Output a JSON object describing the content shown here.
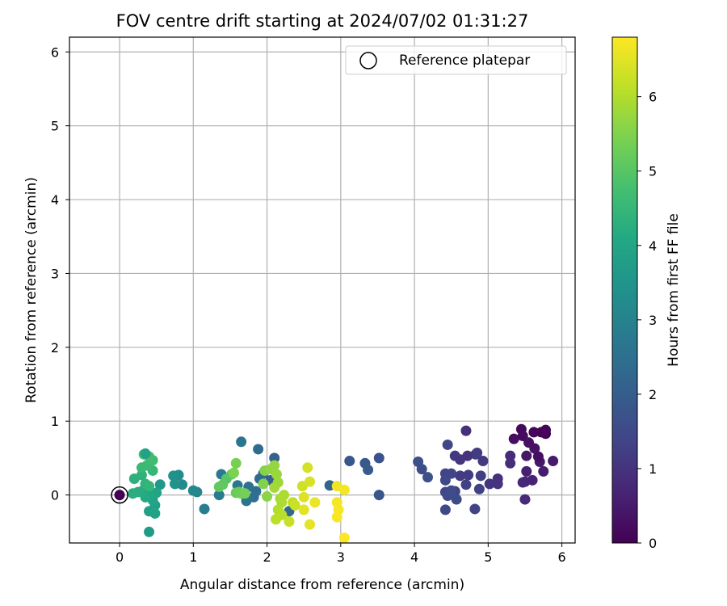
{
  "chart_data": {
    "type": "scatter",
    "title": "FOV centre drift starting at 2024/07/02 01:31:27",
    "xlabel": "Angular distance from reference (arcmin)",
    "ylabel": "Rotation from reference (arcmin)",
    "xlim": [
      -0.68,
      6.18
    ],
    "ylim": [
      -0.65,
      6.2
    ],
    "xticks": [
      0,
      1,
      2,
      3,
      4,
      5,
      6
    ],
    "yticks": [
      0,
      1,
      2,
      3,
      4,
      5,
      6
    ],
    "grid": true,
    "legend": {
      "position": "top-right",
      "entries": [
        "Reference platepar"
      ]
    },
    "reference_point": {
      "x": 0,
      "y": 0
    },
    "colorbar": {
      "label": "Hours from first FF file",
      "range": [
        0,
        6.8
      ],
      "ticks": [
        0,
        1,
        2,
        3,
        4,
        5,
        6
      ],
      "colormap": "viridis"
    },
    "points": [
      {
        "x": 5.72,
        "y": 0.85,
        "h": 0.05
      },
      {
        "x": 5.78,
        "y": 0.83,
        "h": 0.08
      },
      {
        "x": 5.62,
        "y": 0.85,
        "h": 0.12
      },
      {
        "x": 5.45,
        "y": 0.89,
        "h": 0.15
      },
      {
        "x": 5.47,
        "y": 0.8,
        "h": 0.2
      },
      {
        "x": 5.35,
        "y": 0.76,
        "h": 0.25
      },
      {
        "x": 5.55,
        "y": 0.71,
        "h": 0.3
      },
      {
        "x": 5.63,
        "y": 0.63,
        "h": 0.35
      },
      {
        "x": 5.52,
        "y": 0.53,
        "h": 0.4
      },
      {
        "x": 5.7,
        "y": 0.45,
        "h": 0.45
      },
      {
        "x": 5.88,
        "y": 0.46,
        "h": 0.5
      },
      {
        "x": 5.75,
        "y": 0.32,
        "h": 0.55
      },
      {
        "x": 5.52,
        "y": 0.32,
        "h": 0.6
      },
      {
        "x": 5.6,
        "y": 0.2,
        "h": 0.65
      },
      {
        "x": 5.5,
        "y": 0.18,
        "h": 0.7
      },
      {
        "x": 5.47,
        "y": 0.17,
        "h": 0.75
      },
      {
        "x": 5.5,
        "y": -0.06,
        "h": 0.8
      },
      {
        "x": 5.78,
        "y": 0.88,
        "h": 0.1
      },
      {
        "x": 5.68,
        "y": 0.52,
        "h": 0.28
      },
      {
        "x": 5.3,
        "y": 0.53,
        "h": 0.85
      },
      {
        "x": 5.3,
        "y": 0.43,
        "h": 0.9
      },
      {
        "x": 5.13,
        "y": 0.22,
        "h": 0.95
      },
      {
        "x": 5.13,
        "y": 0.15,
        "h": 1.0
      },
      {
        "x": 5.02,
        "y": 0.15,
        "h": 1.05
      },
      {
        "x": 4.93,
        "y": 0.46,
        "h": 1.1
      },
      {
        "x": 4.85,
        "y": 0.57,
        "h": 1.15
      },
      {
        "x": 4.83,
        "y": 0.55,
        "h": 1.2
      },
      {
        "x": 4.9,
        "y": 0.26,
        "h": 1.25
      },
      {
        "x": 4.88,
        "y": 0.08,
        "h": 1.3
      },
      {
        "x": 4.82,
        "y": -0.19,
        "h": 1.35
      },
      {
        "x": 4.7,
        "y": 0.87,
        "h": 0.92
      },
      {
        "x": 4.72,
        "y": 0.53,
        "h": 1.0
      },
      {
        "x": 4.62,
        "y": 0.48,
        "h": 1.05
      },
      {
        "x": 4.55,
        "y": 0.53,
        "h": 1.12
      },
      {
        "x": 4.62,
        "y": 0.26,
        "h": 1.18
      },
      {
        "x": 4.73,
        "y": 0.27,
        "h": 1.22
      },
      {
        "x": 4.7,
        "y": 0.14,
        "h": 1.28
      },
      {
        "x": 4.55,
        "y": 0.05,
        "h": 1.33
      },
      {
        "x": 4.5,
        "y": 0.29,
        "h": 1.38
      },
      {
        "x": 4.45,
        "y": 0.68,
        "h": 1.4
      },
      {
        "x": 4.42,
        "y": 0.29,
        "h": 1.42
      },
      {
        "x": 4.42,
        "y": 0.2,
        "h": 1.45
      },
      {
        "x": 4.42,
        "y": 0.04,
        "h": 1.47
      },
      {
        "x": 4.45,
        "y": -0.01,
        "h": 1.5
      },
      {
        "x": 4.42,
        "y": -0.2,
        "h": 1.52
      },
      {
        "x": 4.5,
        "y": 0.06,
        "h": 1.55
      },
      {
        "x": 4.57,
        "y": -0.06,
        "h": 1.57
      },
      {
        "x": 4.05,
        "y": 0.45,
        "h": 1.6
      },
      {
        "x": 4.1,
        "y": 0.35,
        "h": 1.62
      },
      {
        "x": 4.18,
        "y": 0.24,
        "h": 1.65
      },
      {
        "x": 3.52,
        "y": 0.5,
        "h": 1.75
      },
      {
        "x": 3.52,
        "y": 0.0,
        "h": 1.8
      },
      {
        "x": 3.12,
        "y": 0.46,
        "h": 1.85
      },
      {
        "x": 3.33,
        "y": 0.43,
        "h": 1.9
      },
      {
        "x": 3.37,
        "y": 0.34,
        "h": 1.95
      },
      {
        "x": 2.85,
        "y": 0.13,
        "h": 2.2
      },
      {
        "x": 2.3,
        "y": -0.22,
        "h": 2.3
      },
      {
        "x": 2.1,
        "y": 0.5,
        "h": 2.1
      },
      {
        "x": 2.05,
        "y": 0.2,
        "h": 2.15
      },
      {
        "x": 1.95,
        "y": 0.29,
        "h": 2.25
      },
      {
        "x": 1.9,
        "y": 0.22,
        "h": 2.35
      },
      {
        "x": 1.88,
        "y": 0.62,
        "h": 2.4
      },
      {
        "x": 1.85,
        "y": 0.05,
        "h": 2.45
      },
      {
        "x": 1.82,
        "y": -0.03,
        "h": 2.5
      },
      {
        "x": 1.75,
        "y": 0.11,
        "h": 2.55
      },
      {
        "x": 1.72,
        "y": -0.08,
        "h": 2.6
      },
      {
        "x": 1.65,
        "y": 0.72,
        "h": 2.65
      },
      {
        "x": 1.6,
        "y": 0.13,
        "h": 2.7
      },
      {
        "x": 1.38,
        "y": 0.28,
        "h": 2.75
      },
      {
        "x": 1.35,
        "y": 0.0,
        "h": 2.8
      },
      {
        "x": 1.15,
        "y": -0.19,
        "h": 2.85
      },
      {
        "x": 1.05,
        "y": 0.04,
        "h": 3.1
      },
      {
        "x": 1.0,
        "y": 0.06,
        "h": 3.15
      },
      {
        "x": 0.85,
        "y": 0.14,
        "h": 3.2
      },
      {
        "x": 0.8,
        "y": 0.27,
        "h": 3.3
      },
      {
        "x": 0.73,
        "y": 0.26,
        "h": 3.4
      },
      {
        "x": 0.75,
        "y": 0.15,
        "h": 3.45
      },
      {
        "x": 0.55,
        "y": 0.14,
        "h": 3.6
      },
      {
        "x": 0.4,
        "y": -0.5,
        "h": 3.7
      },
      {
        "x": 0.4,
        "y": -0.22,
        "h": 3.8
      },
      {
        "x": 0.48,
        "y": -0.14,
        "h": 3.85
      },
      {
        "x": 0.48,
        "y": -0.25,
        "h": 3.9
      },
      {
        "x": 0.45,
        "y": -0.07,
        "h": 3.95
      },
      {
        "x": 0.5,
        "y": 0.03,
        "h": 4.0
      },
      {
        "x": 0.4,
        "y": 0.03,
        "h": 4.05
      },
      {
        "x": 0.35,
        "y": -0.03,
        "h": 4.1
      },
      {
        "x": 0.3,
        "y": 0.05,
        "h": 4.15
      },
      {
        "x": 0.25,
        "y": 0.04,
        "h": 4.2
      },
      {
        "x": 0.18,
        "y": 0.02,
        "h": 4.25
      },
      {
        "x": 0.2,
        "y": 0.22,
        "h": 4.3
      },
      {
        "x": 0.3,
        "y": 0.27,
        "h": 4.35
      },
      {
        "x": 0.35,
        "y": 0.15,
        "h": 4.4
      },
      {
        "x": 0.4,
        "y": 0.12,
        "h": 4.45
      },
      {
        "x": 0.45,
        "y": 0.33,
        "h": 4.5
      },
      {
        "x": 0.3,
        "y": 0.37,
        "h": 4.55
      },
      {
        "x": 0.37,
        "y": 0.4,
        "h": 4.6
      },
      {
        "x": 0.45,
        "y": 0.47,
        "h": 4.65
      },
      {
        "x": 0.4,
        "y": 0.52,
        "h": 4.7
      },
      {
        "x": 0.33,
        "y": 0.55,
        "h": 4.75
      },
      {
        "x": 0.35,
        "y": 0.56,
        "h": 3.9
      },
      {
        "x": 1.45,
        "y": 0.22,
        "h": 5.0
      },
      {
        "x": 1.52,
        "y": 0.28,
        "h": 5.05
      },
      {
        "x": 1.4,
        "y": 0.14,
        "h": 5.1
      },
      {
        "x": 1.35,
        "y": 0.11,
        "h": 5.15
      },
      {
        "x": 1.58,
        "y": 0.03,
        "h": 5.2
      },
      {
        "x": 1.62,
        "y": 0.04,
        "h": 5.25
      },
      {
        "x": 1.65,
        "y": 0.02,
        "h": 5.3
      },
      {
        "x": 1.7,
        "y": 0.02,
        "h": 5.35
      },
      {
        "x": 1.58,
        "y": 0.43,
        "h": 5.4
      },
      {
        "x": 1.55,
        "y": 0.3,
        "h": 5.45
      },
      {
        "x": 1.95,
        "y": 0.15,
        "h": 5.5
      },
      {
        "x": 1.97,
        "y": 0.33,
        "h": 5.55
      },
      {
        "x": 2.0,
        "y": -0.02,
        "h": 5.6
      },
      {
        "x": 2.05,
        "y": 0.35,
        "h": 5.65
      },
      {
        "x": 2.1,
        "y": 0.4,
        "h": 5.7
      },
      {
        "x": 2.13,
        "y": 0.28,
        "h": 5.75
      },
      {
        "x": 2.15,
        "y": 0.17,
        "h": 5.8
      },
      {
        "x": 2.1,
        "y": 0.1,
        "h": 5.85
      },
      {
        "x": 2.18,
        "y": -0.05,
        "h": 5.9
      },
      {
        "x": 2.2,
        "y": -0.1,
        "h": 5.95
      },
      {
        "x": 2.15,
        "y": -0.2,
        "h": 6.0
      },
      {
        "x": 2.2,
        "y": -0.27,
        "h": 6.05
      },
      {
        "x": 2.12,
        "y": -0.33,
        "h": 6.1
      },
      {
        "x": 2.23,
        "y": 0.0,
        "h": 5.95
      },
      {
        "x": 2.35,
        "y": -0.1,
        "h": 6.15
      },
      {
        "x": 2.3,
        "y": -0.36,
        "h": 6.2
      },
      {
        "x": 2.38,
        "y": -0.14,
        "h": 6.25
      },
      {
        "x": 2.48,
        "y": 0.12,
        "h": 6.3
      },
      {
        "x": 2.55,
        "y": 0.37,
        "h": 6.35
      },
      {
        "x": 2.58,
        "y": 0.18,
        "h": 6.4
      },
      {
        "x": 2.5,
        "y": -0.03,
        "h": 6.45
      },
      {
        "x": 2.5,
        "y": -0.2,
        "h": 6.5
      },
      {
        "x": 2.58,
        "y": -0.4,
        "h": 6.55
      },
      {
        "x": 2.65,
        "y": -0.1,
        "h": 6.6
      },
      {
        "x": 2.95,
        "y": 0.12,
        "h": 6.65
      },
      {
        "x": 3.05,
        "y": 0.07,
        "h": 6.7
      },
      {
        "x": 2.95,
        "y": -0.1,
        "h": 6.72
      },
      {
        "x": 2.97,
        "y": -0.2,
        "h": 6.74
      },
      {
        "x": 2.95,
        "y": -0.3,
        "h": 6.76
      },
      {
        "x": 3.05,
        "y": -0.58,
        "h": 6.78
      }
    ]
  }
}
